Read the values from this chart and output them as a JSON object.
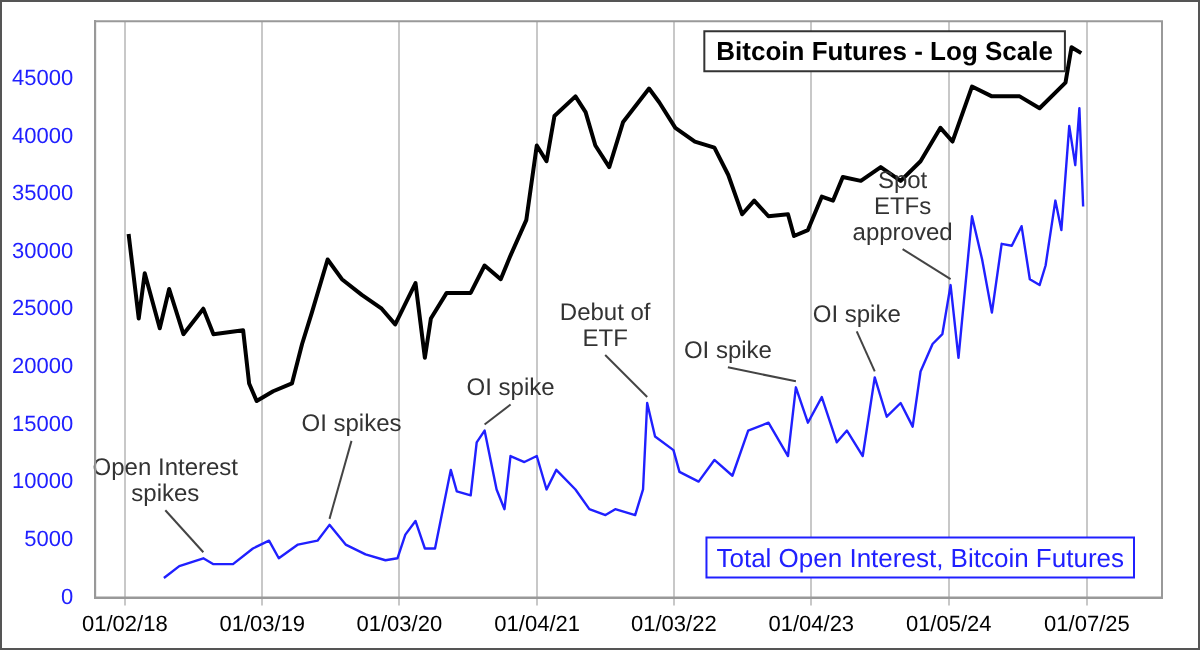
{
  "chart_data": {
    "type": "line",
    "title": "Bitcoin Futures - Log Scale",
    "xlim": [
      "2017-10-15",
      "2025-07-26"
    ],
    "xticks": [
      {
        "value": "2018-01-02",
        "label": "01/02/18"
      },
      {
        "value": "2019-01-03",
        "label": "01/03/19"
      },
      {
        "value": "2020-01-03",
        "label": "01/03/20"
      },
      {
        "value": "2021-01-04",
        "label": "01/04/21"
      },
      {
        "value": "2022-01-03",
        "label": "01/03/22"
      },
      {
        "value": "2023-01-04",
        "label": "01/04/23"
      },
      {
        "value": "2024-01-05",
        "label": "01/05/24"
      },
      {
        "value": "2025-01-07",
        "label": "01/07/25"
      }
    ],
    "ylim": [
      0,
      50000
    ],
    "yticks": [
      0,
      5000,
      10000,
      15000,
      20000,
      25000,
      30000,
      35000,
      40000,
      45000
    ],
    "grid": "x",
    "legend": "bottom right",
    "marker": "none",
    "line_style": "solid",
    "series": [
      {
        "color": "#000000",
        "x": [
          "2018-01-12",
          "2018-02-08",
          "2018-02-24",
          "2018-04-05",
          "2018-04-30",
          "2018-06-07",
          "2018-07-30",
          "2018-08-26",
          "2018-11-13",
          "2018-11-29",
          "2018-12-19",
          "2019-02-01",
          "2019-03-23",
          "2019-04-19",
          "2019-05-15",
          "2019-06-26",
          "2019-08-03",
          "2019-09-25",
          "2019-11-17",
          "2019-12-23",
          "2020-02-15",
          "2020-03-11",
          "2020-03-27",
          "2020-05-08",
          "2020-07-11",
          "2020-08-17",
          "2020-09-29",
          "2020-10-25",
          "2020-12-06",
          "2021-01-03",
          "2021-01-29",
          "2021-02-19",
          "2021-04-16",
          "2021-05-13",
          "2021-06-08",
          "2021-07-15",
          "2021-08-21",
          "2021-10-29",
          "2021-11-25",
          "2022-01-07",
          "2022-02-28",
          "2022-04-21",
          "2022-05-28",
          "2022-07-04",
          "2022-08-05",
          "2022-09-12",
          "2022-11-03",
          "2022-11-19",
          "2022-12-26",
          "2023-02-01",
          "2023-03-03",
          "2023-03-29",
          "2023-05-16",
          "2023-07-08",
          "2023-08-30",
          "2023-10-22",
          "2023-12-14",
          "2024-01-15",
          "2024-03-07",
          "2024-04-29",
          "2024-07-12",
          "2024-09-03",
          "2024-11-11",
          "2024-11-27",
          "2024-12-23"
        ],
        "values": [
          31540,
          24210,
          28130,
          23360,
          26770,
          22850,
          25060,
          22850,
          23190,
          18580,
          17050,
          17900,
          18580,
          22000,
          24720,
          29330,
          27620,
          26260,
          25060,
          23700,
          27280,
          20800,
          24210,
          26430,
          26430,
          28810,
          27620,
          29670,
          32740,
          39220,
          37850,
          41770,
          43480,
          42110,
          39220,
          37340,
          41260,
          44160,
          42970,
          40750,
          39560,
          39040,
          36660,
          33250,
          34440,
          33080,
          33250,
          31370,
          31880,
          34780,
          34440,
          36490,
          36150,
          37340,
          36150,
          37850,
          40750,
          39560,
          44330,
          43480,
          43480,
          42450,
          44670,
          47740,
          47230
        ]
      },
      {
        "name": "Total Open Interest, Bitcoin Futures",
        "color": "#2020ff",
        "x": [
          "2018-04-16",
          "2018-05-27",
          "2018-07-30",
          "2018-08-26",
          "2018-10-17",
          "2018-12-09",
          "2019-01-21",
          "2019-02-16",
          "2019-04-08",
          "2019-05-30",
          "2019-07-01",
          "2019-08-13",
          "2019-10-05",
          "2019-11-27",
          "2019-12-29",
          "2020-01-19",
          "2020-02-15",
          "2020-03-11",
          "2020-04-07",
          "2020-05-19",
          "2020-06-04",
          "2020-07-11",
          "2020-07-27",
          "2020-08-17",
          "2020-09-18",
          "2020-10-09",
          "2020-10-25",
          "2020-12-01",
          "2021-01-03",
          "2021-01-29",
          "2021-02-24",
          "2021-04-16",
          "2021-05-23",
          "2021-07-05",
          "2021-07-31",
          "2021-09-22",
          "2021-10-13",
          "2021-10-24",
          "2021-11-14",
          "2022-01-02",
          "2022-01-18",
          "2022-03-10",
          "2022-04-21",
          "2022-06-08",
          "2022-07-20",
          "2022-09-12",
          "2022-11-03",
          "2022-11-24",
          "2022-12-26",
          "2023-02-01",
          "2023-03-13",
          "2023-04-09",
          "2023-05-21",
          "2023-06-22",
          "2023-07-24",
          "2023-08-30",
          "2023-10-01",
          "2023-10-22",
          "2023-11-23",
          "2023-12-19",
          "2024-01-10",
          "2024-01-31",
          "2024-03-07",
          "2024-04-03",
          "2024-04-29",
          "2024-05-25",
          "2024-06-21",
          "2024-07-17",
          "2024-08-08",
          "2024-09-03",
          "2024-09-19",
          "2024-10-15",
          "2024-10-31",
          "2024-11-21",
          "2024-12-07",
          "2024-12-18",
          "2024-12-28"
        ],
        "values": [
          1700,
          2730,
          3410,
          2900,
          2900,
          4260,
          4940,
          3410,
          4600,
          4940,
          6310,
          4600,
          3750,
          3240,
          3410,
          5460,
          6650,
          4260,
          4260,
          11080,
          9210,
          8870,
          13470,
          14490,
          9380,
          7670,
          12280,
          11760,
          12280,
          9380,
          11080,
          9380,
          7670,
          7160,
          7670,
          7160,
          9380,
          16880,
          13980,
          12790,
          10910,
          10060,
          11940,
          10570,
          14490,
          15170,
          12280,
          18240,
          15170,
          17390,
          13470,
          14490,
          12280,
          19100,
          15690,
          16880,
          14830,
          19610,
          22000,
          22850,
          27110,
          20800,
          33080,
          29330,
          24720,
          30690,
          30520,
          32220,
          27620,
          27110,
          28810,
          34440,
          31880,
          40920,
          37510,
          42450,
          33930
        ]
      }
    ],
    "annotations": [
      {
        "text": "Open Interest\nspikes",
        "x": "2018-07-30",
        "y": 3410
      },
      {
        "text": "OI spikes",
        "x": "2019-07-01",
        "y": 6310
      },
      {
        "text": "OI spike",
        "x": "2020-08-17",
        "y": 14490
      },
      {
        "text": "Debut of\nETF",
        "x": "2021-10-24",
        "y": 16880
      },
      {
        "text": "OI spike",
        "x": "2022-11-24",
        "y": 18240
      },
      {
        "text": "OI spike",
        "x": "2023-06-22",
        "y": 19100
      },
      {
        "text": "Spot\nETFs\napproved",
        "x": "2024-01-10",
        "y": 27110
      }
    ]
  }
}
